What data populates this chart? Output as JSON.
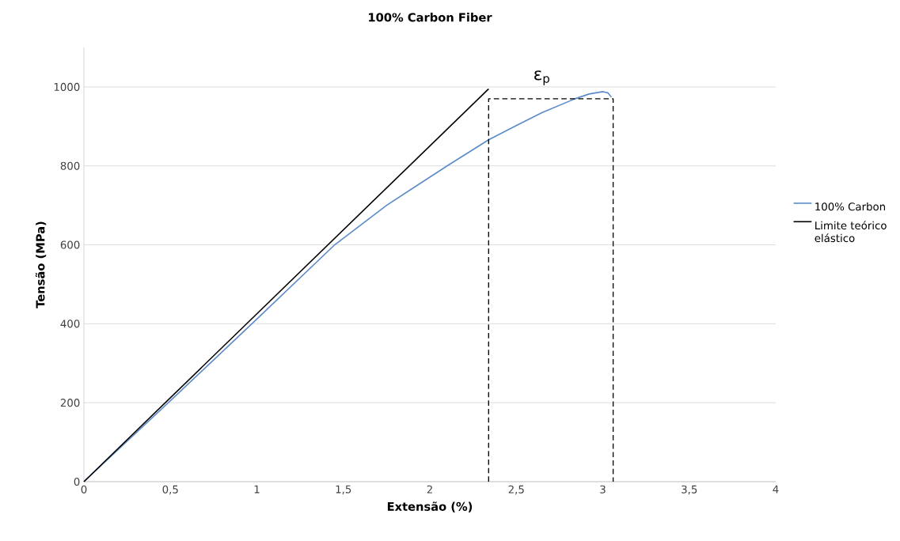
{
  "chart_data": {
    "type": "line",
    "title": "100% Carbon Fiber",
    "xlabel": "Extensão (%)",
    "ylabel": "Tensão (MPa)",
    "series": [
      {
        "name": "100% Carbon",
        "color": "#5b8bc9",
        "x": [
          0,
          0.5,
          1,
          1.45,
          1.75,
          2.1,
          2.34,
          2.5,
          2.65,
          2.84,
          2.92,
          3.0,
          3.03,
          3.05
        ],
        "values": [
          0,
          205,
          412,
          600,
          700,
          800,
          866,
          902,
          935,
          970,
          982,
          988,
          985,
          974
        ]
      },
      {
        "name": "Limite teórico elástico",
        "color": "#000000",
        "x": [
          0,
          2.34
        ],
        "values": [
          0,
          995
        ]
      },
      {
        "color": "#000000",
        "line_style": "dashed",
        "x": [
          2.34,
          2.34,
          3.06,
          3.06
        ],
        "values": [
          0,
          970,
          970,
          0
        ]
      }
    ],
    "annotations": [
      "ε$_{p}$"
    ],
    "xlim": [
      0,
      4
    ],
    "ylim": [
      0,
      1100
    ],
    "xticks": [
      0,
      {
        "value": 0.5,
        "label": "0,5"
      },
      1,
      {
        "value": 1.5,
        "label": "1,5"
      },
      2,
      {
        "value": 2.5,
        "label": "2,5"
      },
      3,
      {
        "value": 3.5,
        "label": "3,5"
      },
      4
    ],
    "yticks": [
      0,
      200,
      400,
      600,
      800,
      1000
    ],
    "grid": "y",
    "legend": "right"
  }
}
